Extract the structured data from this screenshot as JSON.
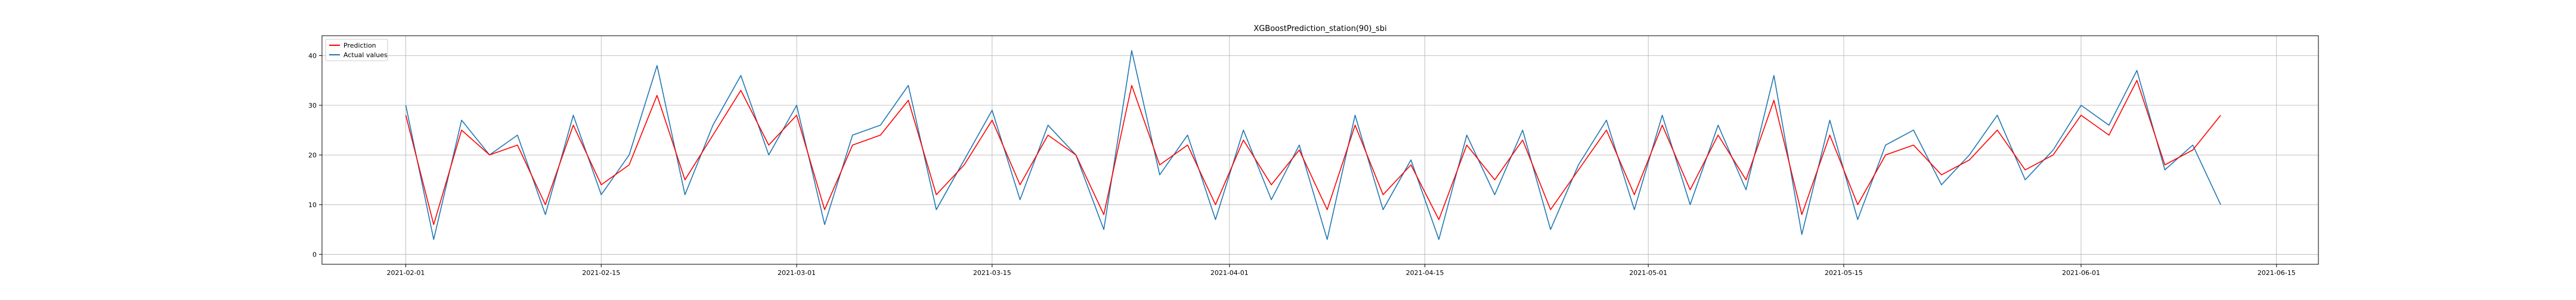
{
  "chart_data": {
    "type": "line",
    "title": "XGBoostPrediction_station(90)_sbi",
    "xlabel": "",
    "ylabel": "",
    "x_range": [
      "2021-01-26",
      "2021-06-18"
    ],
    "ylim": [
      -2,
      44
    ],
    "grid": true,
    "legend_position": "top-left",
    "x_ticks": [
      "2021-02-01",
      "2021-02-15",
      "2021-03-01",
      "2021-03-15",
      "2021-04-01",
      "2021-04-15",
      "2021-05-01",
      "2021-05-15",
      "2021-06-01",
      "2021-06-15"
    ],
    "y_ticks": [
      0,
      10,
      20,
      30,
      40
    ],
    "series": [
      {
        "name": "Prediction",
        "color": "#ff0000",
        "x": [
          "2021-02-01",
          "2021-02-03",
          "2021-02-05",
          "2021-02-07",
          "2021-02-09",
          "2021-02-11",
          "2021-02-13",
          "2021-02-15",
          "2021-02-17",
          "2021-02-19",
          "2021-02-21",
          "2021-02-23",
          "2021-02-25",
          "2021-02-27",
          "2021-03-01",
          "2021-03-03",
          "2021-03-05",
          "2021-03-07",
          "2021-03-09",
          "2021-03-11",
          "2021-03-13",
          "2021-03-15",
          "2021-03-17",
          "2021-03-19",
          "2021-03-21",
          "2021-03-23",
          "2021-03-25",
          "2021-03-27",
          "2021-03-29",
          "2021-03-31",
          "2021-04-02",
          "2021-04-04",
          "2021-04-06",
          "2021-04-08",
          "2021-04-10",
          "2021-04-12",
          "2021-04-14",
          "2021-04-16",
          "2021-04-18",
          "2021-04-20",
          "2021-04-22",
          "2021-04-24",
          "2021-04-26",
          "2021-04-28",
          "2021-04-30",
          "2021-05-02",
          "2021-05-04",
          "2021-05-06",
          "2021-05-08",
          "2021-05-10",
          "2021-05-12",
          "2021-05-14",
          "2021-05-16",
          "2021-05-18",
          "2021-05-20",
          "2021-05-22",
          "2021-05-24",
          "2021-05-26",
          "2021-05-28",
          "2021-05-30",
          "2021-06-01",
          "2021-06-03",
          "2021-06-05",
          "2021-06-07",
          "2021-06-09",
          "2021-06-11"
        ],
        "values": [
          28,
          6,
          25,
          20,
          22,
          10,
          26,
          14,
          18,
          32,
          15,
          24,
          33,
          22,
          28,
          9,
          22,
          24,
          31,
          12,
          18,
          27,
          14,
          24,
          20,
          8,
          34,
          18,
          22,
          10,
          23,
          14,
          21,
          9,
          26,
          12,
          18,
          7,
          22,
          15,
          23,
          9,
          17,
          25,
          12,
          26,
          13,
          24,
          15,
          31,
          8,
          24,
          10,
          20,
          22,
          16,
          19,
          25,
          17,
          20,
          28,
          24,
          35,
          18,
          21,
          28
        ]
      },
      {
        "name": "Actual values",
        "color": "#1f77b4",
        "x": [
          "2021-02-01",
          "2021-02-03",
          "2021-02-05",
          "2021-02-07",
          "2021-02-09",
          "2021-02-11",
          "2021-02-13",
          "2021-02-15",
          "2021-02-17",
          "2021-02-19",
          "2021-02-21",
          "2021-02-23",
          "2021-02-25",
          "2021-02-27",
          "2021-03-01",
          "2021-03-03",
          "2021-03-05",
          "2021-03-07",
          "2021-03-09",
          "2021-03-11",
          "2021-03-13",
          "2021-03-15",
          "2021-03-17",
          "2021-03-19",
          "2021-03-21",
          "2021-03-23",
          "2021-03-25",
          "2021-03-27",
          "2021-03-29",
          "2021-03-31",
          "2021-04-02",
          "2021-04-04",
          "2021-04-06",
          "2021-04-08",
          "2021-04-10",
          "2021-04-12",
          "2021-04-14",
          "2021-04-16",
          "2021-04-18",
          "2021-04-20",
          "2021-04-22",
          "2021-04-24",
          "2021-04-26",
          "2021-04-28",
          "2021-04-30",
          "2021-05-02",
          "2021-05-04",
          "2021-05-06",
          "2021-05-08",
          "2021-05-10",
          "2021-05-12",
          "2021-05-14",
          "2021-05-16",
          "2021-05-18",
          "2021-05-20",
          "2021-05-22",
          "2021-05-24",
          "2021-05-26",
          "2021-05-28",
          "2021-05-30",
          "2021-06-01",
          "2021-06-03",
          "2021-06-05",
          "2021-06-07",
          "2021-06-09",
          "2021-06-11"
        ],
        "values": [
          30,
          3,
          27,
          20,
          24,
          8,
          28,
          12,
          20,
          38,
          12,
          26,
          36,
          20,
          30,
          6,
          24,
          26,
          34,
          9,
          19,
          29,
          11,
          26,
          20,
          5,
          41,
          16,
          24,
          7,
          25,
          11,
          22,
          3,
          28,
          9,
          19,
          3,
          24,
          12,
          25,
          5,
          18,
          27,
          9,
          28,
          10,
          26,
          13,
          36,
          4,
          27,
          7,
          22,
          25,
          14,
          20,
          28,
          15,
          21,
          30,
          26,
          37,
          17,
          22,
          10
        ]
      }
    ]
  }
}
